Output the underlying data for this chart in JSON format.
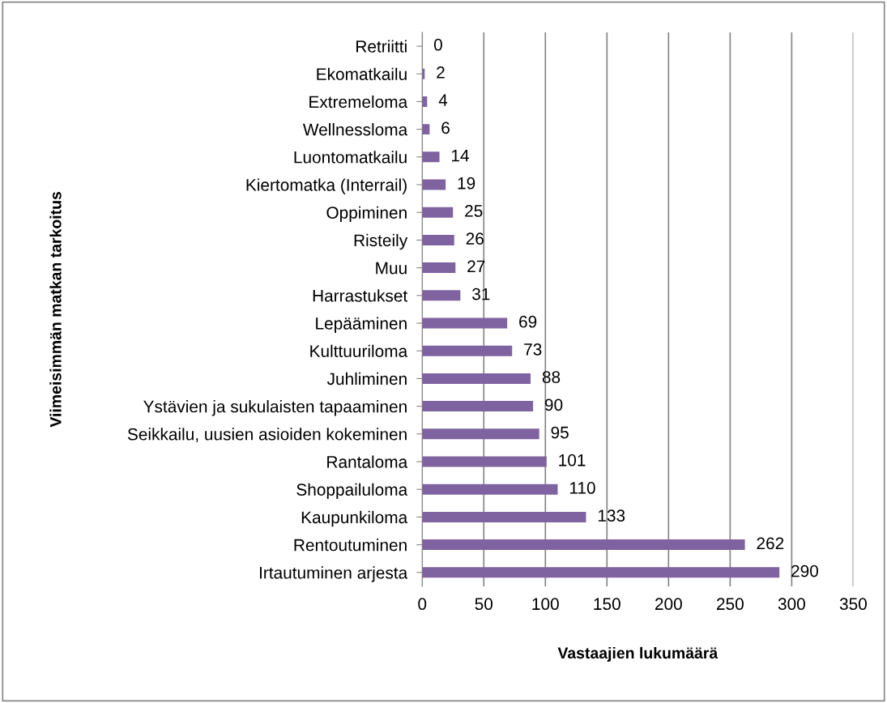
{
  "chart_data": {
    "type": "bar",
    "orientation": "horizontal",
    "xlabel": "Vastaajien lukumäärä",
    "ylabel": "Viimeisimmän matkan tarkoitus",
    "categories": [
      "Retriitti",
      "Ekomatkailu",
      "Extremeloma",
      "Wellnessloma",
      "Luontomatkailu",
      "Kiertomatka (Interrail)",
      "Oppiminen",
      "Risteily",
      "Muu",
      "Harrastukset",
      "Lepääminen",
      "Kulttuuriloma",
      "Juhliminen",
      "Ystävien ja sukulaisten tapaaminen",
      "Seikkailu, uusien asioiden kokeminen",
      "Rantaloma",
      "Shoppailuloma",
      "Kaupunkiloma",
      "Rentoutuminen",
      "Irtautuminen arjesta"
    ],
    "values": [
      0,
      2,
      4,
      6,
      14,
      19,
      25,
      26,
      27,
      31,
      69,
      73,
      88,
      90,
      95,
      101,
      110,
      133,
      262,
      290
    ],
    "color": "#7f62a0",
    "xlim": [
      0,
      350
    ],
    "xticks": [
      0,
      50,
      100,
      150,
      200,
      250,
      300,
      350
    ],
    "grid": "x",
    "data_labels": true
  }
}
